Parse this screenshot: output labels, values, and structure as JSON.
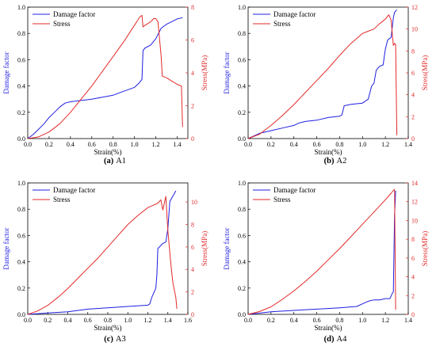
{
  "colors": {
    "damage": "#1f1fe0",
    "stress": "#e32a2a",
    "axis": "#000000"
  },
  "chart_data": [
    {
      "type": "line",
      "caption_letter": "(a)",
      "caption_name": "A1",
      "xlabel": "Strain(%)",
      "ylabel": "Damage factor",
      "y2label": "Stress(MPa)",
      "xlim": [
        0,
        1.5
      ],
      "ylim": [
        0,
        1.0
      ],
      "y2lim": [
        0,
        8
      ],
      "xticks": [
        "0.0",
        "0.2",
        "0.4",
        "0.6",
        "0.8",
        "1.0",
        "1.2",
        "1.4"
      ],
      "yticks": [
        "0.0",
        "0.2",
        "0.4",
        "0.6",
        "0.8",
        "1.0"
      ],
      "y2ticks": [
        "0",
        "2",
        "4",
        "6",
        "8"
      ],
      "legend": {
        "position": "top-left",
        "entries": [
          "Damage factor",
          "Stress"
        ]
      },
      "series": [
        {
          "name": "Damage factor",
          "axis": "left",
          "x": [
            0,
            0.05,
            0.1,
            0.15,
            0.2,
            0.25,
            0.3,
            0.35,
            0.4,
            0.6,
            0.8,
            0.9,
            1.0,
            1.04,
            1.05,
            1.06,
            1.07,
            1.08,
            1.1,
            1.15,
            1.2,
            1.25,
            1.3,
            1.35,
            1.4,
            1.45
          ],
          "y": [
            0,
            0.03,
            0.07,
            0.11,
            0.16,
            0.2,
            0.24,
            0.27,
            0.28,
            0.3,
            0.33,
            0.36,
            0.39,
            0.42,
            0.43,
            0.44,
            0.45,
            0.67,
            0.69,
            0.71,
            0.76,
            0.84,
            0.87,
            0.89,
            0.91,
            0.92
          ]
        },
        {
          "name": "Stress",
          "axis": "right",
          "x": [
            0,
            0.1,
            0.2,
            0.3,
            0.4,
            0.5,
            0.6,
            0.7,
            0.8,
            0.9,
            0.95,
            1.0,
            1.03,
            1.05,
            1.07,
            1.08,
            1.1,
            1.15,
            1.18,
            1.2,
            1.22,
            1.25,
            1.26,
            1.3,
            1.35,
            1.4,
            1.44,
            1.45
          ],
          "y": [
            0,
            0.1,
            0.4,
            0.9,
            1.6,
            2.4,
            3.2,
            4.1,
            5.0,
            5.9,
            6.4,
            6.9,
            7.2,
            7.4,
            7.5,
            6.8,
            6.9,
            7.1,
            7.3,
            7.3,
            7.1,
            5.0,
            3.8,
            3.7,
            3.5,
            3.3,
            3.2,
            0.7
          ]
        }
      ]
    },
    {
      "type": "line",
      "caption_letter": "(b)",
      "caption_name": "A2",
      "xlabel": "Strain(%)",
      "ylabel": "Damage factor",
      "y2label": "Stress(MPa)",
      "xlim": [
        0,
        1.4
      ],
      "ylim": [
        0,
        1.0
      ],
      "y2lim": [
        0,
        12
      ],
      "xticks": [
        "0.0",
        "0.2",
        "0.4",
        "0.6",
        "0.8",
        "1.0",
        "1.2",
        "1.4"
      ],
      "yticks": [
        "0.0",
        "0.2",
        "0.4",
        "0.6",
        "0.8",
        "1.0"
      ],
      "y2ticks": [
        "0",
        "2",
        "4",
        "6",
        "8",
        "10",
        "12"
      ],
      "legend": {
        "position": "top-left",
        "entries": [
          "Damage factor",
          "Stress"
        ]
      },
      "series": [
        {
          "name": "Damage factor",
          "axis": "left",
          "x": [
            0,
            0.05,
            0.1,
            0.2,
            0.3,
            0.4,
            0.45,
            0.5,
            0.6,
            0.7,
            0.8,
            0.82,
            0.84,
            0.9,
            1.0,
            1.05,
            1.08,
            1.1,
            1.12,
            1.15,
            1.18,
            1.2,
            1.22,
            1.25,
            1.27,
            1.28,
            1.3
          ],
          "y": [
            0,
            0.02,
            0.04,
            0.06,
            0.08,
            0.1,
            0.12,
            0.13,
            0.14,
            0.16,
            0.17,
            0.18,
            0.25,
            0.26,
            0.27,
            0.3,
            0.4,
            0.42,
            0.52,
            0.55,
            0.56,
            0.68,
            0.75,
            0.77,
            0.92,
            0.96,
            0.98
          ]
        },
        {
          "name": "Stress",
          "axis": "right",
          "x": [
            0,
            0.1,
            0.2,
            0.3,
            0.4,
            0.5,
            0.6,
            0.7,
            0.8,
            0.9,
            1.0,
            1.05,
            1.1,
            1.15,
            1.2,
            1.23,
            1.25,
            1.27,
            1.28,
            1.29,
            1.3
          ],
          "y": [
            0,
            0.4,
            1.2,
            2.1,
            3.1,
            4.2,
            5.3,
            6.4,
            7.6,
            8.7,
            9.6,
            9.8,
            10.0,
            10.5,
            10.9,
            11.3,
            10.8,
            8.5,
            8.7,
            8.6,
            0.3
          ]
        }
      ]
    },
    {
      "type": "line",
      "caption_letter": "(c)",
      "caption_name": "A3",
      "xlabel": "Strain(%)",
      "ylabel": "Damage factor",
      "y2label": "Stress(MPa)",
      "xlim": [
        0,
        1.6
      ],
      "ylim": [
        0,
        1.0
      ],
      "y2lim": [
        0,
        11.7
      ],
      "xticks": [
        "0.0",
        "0.2",
        "0.4",
        "0.6",
        "0.8",
        "1.0",
        "1.2",
        "1.4",
        "1.6"
      ],
      "yticks": [
        "0.0",
        "0.2",
        "0.4",
        "0.6",
        "0.8",
        "1.0"
      ],
      "y2ticks": [
        "0",
        "2",
        "4",
        "6",
        "8",
        "10"
      ],
      "legend": {
        "position": "top-left",
        "entries": [
          "Damage factor",
          "Stress"
        ]
      },
      "series": [
        {
          "name": "Damage factor",
          "axis": "left",
          "x": [
            0,
            0.2,
            0.4,
            0.6,
            0.8,
            1.0,
            1.2,
            1.22,
            1.24,
            1.28,
            1.29,
            1.3,
            1.35,
            1.38,
            1.4,
            1.42,
            1.45,
            1.48
          ],
          "y": [
            0,
            0.01,
            0.02,
            0.04,
            0.05,
            0.06,
            0.07,
            0.08,
            0.13,
            0.2,
            0.3,
            0.5,
            0.54,
            0.55,
            0.65,
            0.86,
            0.9,
            0.94
          ]
        },
        {
          "name": "Stress",
          "axis": "right",
          "x": [
            0,
            0.1,
            0.2,
            0.3,
            0.4,
            0.5,
            0.6,
            0.7,
            0.8,
            0.9,
            1.0,
            1.1,
            1.2,
            1.25,
            1.3,
            1.33,
            1.35,
            1.38,
            1.4,
            1.43,
            1.45,
            1.48,
            1.49
          ],
          "y": [
            0,
            0.3,
            0.8,
            1.5,
            2.3,
            3.2,
            4.1,
            5.0,
            6.0,
            7.0,
            8.0,
            8.8,
            9.5,
            9.7,
            9.9,
            10.2,
            9.3,
            10.5,
            7.5,
            4.5,
            2.8,
            1.5,
            0.5
          ]
        }
      ]
    },
    {
      "type": "line",
      "caption_letter": "(d)",
      "caption_name": "A4",
      "xlabel": "Strain(%)",
      "ylabel": "Damage factor",
      "y2label": "Stress(MPa)",
      "xlim": [
        0,
        1.4
      ],
      "ylim": [
        0,
        1.0
      ],
      "y2lim": [
        0,
        14
      ],
      "xticks": [
        "0.0",
        "0.2",
        "0.4",
        "0.6",
        "0.8",
        "1.0",
        "1.2",
        "1.4"
      ],
      "yticks": [
        "0.0",
        "0.2",
        "0.4",
        "0.6",
        "0.8",
        "1.0"
      ],
      "y2ticks": [
        "0",
        "2",
        "4",
        "6",
        "8",
        "10",
        "12",
        "14"
      ],
      "legend": {
        "position": "top-left",
        "entries": [
          "Damage factor",
          "Stress"
        ]
      },
      "series": [
        {
          "name": "Damage factor",
          "axis": "left",
          "x": [
            0,
            0.2,
            0.4,
            0.6,
            0.8,
            0.95,
            1.0,
            1.05,
            1.1,
            1.15,
            1.2,
            1.24,
            1.25,
            1.26,
            1.27,
            1.28,
            1.29
          ],
          "y": [
            0,
            0.02,
            0.03,
            0.04,
            0.05,
            0.06,
            0.08,
            0.1,
            0.11,
            0.11,
            0.12,
            0.12,
            0.14,
            0.16,
            0.17,
            0.75,
            0.94
          ]
        },
        {
          "name": "Stress",
          "axis": "right",
          "x": [
            0,
            0.1,
            0.2,
            0.3,
            0.4,
            0.5,
            0.6,
            0.7,
            0.8,
            0.9,
            1.0,
            1.1,
            1.2,
            1.25,
            1.27,
            1.28,
            1.29
          ],
          "y": [
            0,
            0.3,
            0.8,
            1.6,
            2.5,
            3.5,
            4.6,
            5.8,
            7.0,
            8.3,
            9.6,
            10.9,
            12.2,
            12.9,
            13.2,
            13.3,
            0.5
          ]
        }
      ]
    }
  ]
}
